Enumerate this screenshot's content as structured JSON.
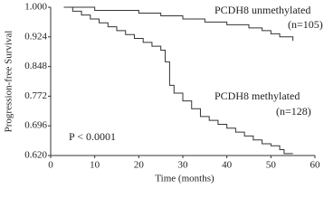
{
  "chart_data": {
    "type": "step",
    "xlabel": "Time (months)",
    "ylabel": "Progression-free Survival",
    "xlim": [
      0,
      60
    ],
    "xticks": [
      0,
      10,
      20,
      30,
      40,
      50,
      60
    ],
    "ylim": [
      0.62,
      1.0
    ],
    "yticks": [
      {
        "value": 1.0,
        "label": "1.000"
      },
      0.924,
      0.848,
      0.772,
      0.696,
      {
        "value": 0.62,
        "label": "0.620"
      }
    ],
    "series": [
      {
        "name": "PCDH8 unmethylated",
        "color": "#333333",
        "x": [
          3,
          10,
          20,
          25,
          30,
          35,
          40,
          45,
          48,
          50,
          52,
          55
        ],
        "values": [
          1.0,
          0.992,
          0.985,
          0.978,
          0.97,
          0.962,
          0.955,
          0.947,
          0.94,
          0.932,
          0.924,
          0.914
        ]
      },
      {
        "name": "PCDH8 methylated",
        "color": "#333333",
        "x": [
          3,
          5,
          7,
          9,
          11,
          13,
          15,
          17,
          19,
          21,
          23,
          25,
          26,
          27,
          28,
          30,
          32,
          34,
          36,
          38,
          40,
          42,
          44,
          46,
          48,
          50,
          52,
          53,
          55
        ],
        "values": [
          1.0,
          0.99,
          0.98,
          0.97,
          0.96,
          0.95,
          0.94,
          0.93,
          0.92,
          0.91,
          0.9,
          0.89,
          0.86,
          0.8,
          0.78,
          0.76,
          0.74,
          0.72,
          0.71,
          0.7,
          0.69,
          0.68,
          0.67,
          0.66,
          0.65,
          0.645,
          0.635,
          0.625,
          0.625
        ]
      }
    ],
    "annotations": [
      "(n=105)",
      "(n=128)",
      "P < 0.0001"
    ]
  }
}
